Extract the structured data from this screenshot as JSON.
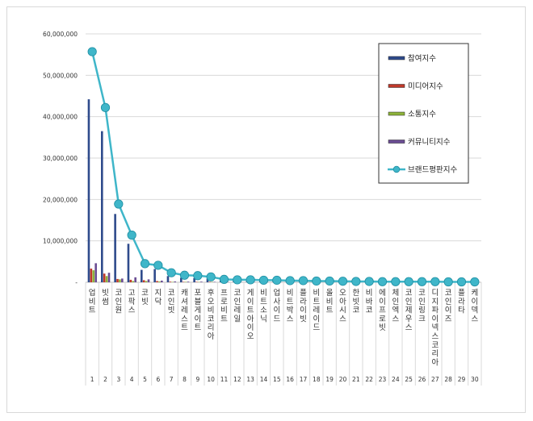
{
  "chart_data": {
    "type": "bar+line",
    "title": "",
    "xlabel": "",
    "ylabel": "",
    "ylim": [
      0,
      60000000
    ],
    "y_ticks": [
      "-",
      "10,000,000",
      "20,000,000",
      "30,000,000",
      "40,000,000",
      "50,000,000",
      "60,000,000"
    ],
    "categories": [
      "업비트",
      "빗썸",
      "코인원",
      "고팍스",
      "코빗",
      "지닥",
      "코인빗",
      "캐셔레스트",
      "포블게이트",
      "후오비코리아",
      "프로비트",
      "코인레일",
      "게이트아이오",
      "비트소닉",
      "업사이드",
      "비트박스",
      "플라이빗",
      "비트레이드",
      "올비트",
      "오아시스",
      "한빗코",
      "비바코",
      "에이프로빗",
      "체인엑스",
      "코인제우스",
      "코인링크",
      "디지파이넥스코리아",
      "코인이즈",
      "플라타",
      "케이덱스"
    ],
    "ranks": [
      "1",
      "2",
      "3",
      "4",
      "5",
      "6",
      "7",
      "8",
      "9",
      "10",
      "11",
      "12",
      "13",
      "14",
      "15",
      "16",
      "17",
      "18",
      "19",
      "20",
      "21",
      "22",
      "23",
      "24",
      "25",
      "26",
      "27",
      "28",
      "29",
      "30"
    ],
    "series": [
      {
        "name": "참여지수",
        "kind": "bar",
        "color": "#2f4b8c",
        "values": [
          44200000,
          36500000,
          16500000,
          9300000,
          3000000,
          3200000,
          1500000,
          1100000,
          1000000,
          900000,
          500000,
          400000,
          400000,
          300000,
          300000,
          250000,
          250000,
          200000,
          200000,
          150000,
          150000,
          150000,
          100000,
          100000,
          100000,
          100000,
          100000,
          80000,
          80000,
          80000
        ]
      },
      {
        "name": "미디어지수",
        "kind": "bar",
        "color": "#c0392b",
        "values": [
          3300000,
          2100000,
          800000,
          600000,
          500000,
          300000,
          150000,
          100000,
          100000,
          100000,
          60000,
          50000,
          50000,
          40000,
          40000,
          30000,
          30000,
          30000,
          30000,
          20000,
          20000,
          20000,
          20000,
          20000,
          20000,
          15000,
          15000,
          15000,
          10000,
          10000
        ]
      },
      {
        "name": "소통지수",
        "kind": "bar",
        "color": "#8db33a",
        "values": [
          2900000,
          1500000,
          700000,
          300000,
          300000,
          200000,
          100000,
          100000,
          80000,
          80000,
          50000,
          40000,
          40000,
          30000,
          30000,
          30000,
          20000,
          20000,
          20000,
          20000,
          15000,
          15000,
          15000,
          10000,
          10000,
          10000,
          10000,
          10000,
          10000,
          10000
        ]
      },
      {
        "name": "커뮤니티지수",
        "kind": "bar",
        "color": "#6a4c93",
        "values": [
          4600000,
          2300000,
          900000,
          1200000,
          700000,
          400000,
          200000,
          150000,
          150000,
          100000,
          80000,
          60000,
          60000,
          50000,
          50000,
          40000,
          40000,
          30000,
          30000,
          30000,
          20000,
          20000,
          20000,
          20000,
          20000,
          15000,
          15000,
          15000,
          10000,
          10000
        ]
      },
      {
        "name": "브랜드평판지수",
        "kind": "line",
        "color": "#3fb6c9",
        "values": [
          55700000,
          42200000,
          18900000,
          11400000,
          4500000,
          4100000,
          2300000,
          1700000,
          1600000,
          1300000,
          700000,
          600000,
          600000,
          500000,
          500000,
          400000,
          400000,
          300000,
          300000,
          250000,
          200000,
          200000,
          150000,
          150000,
          150000,
          150000,
          150000,
          100000,
          100000,
          100000
        ]
      }
    ],
    "legend_position": "top-right",
    "grid": true
  }
}
